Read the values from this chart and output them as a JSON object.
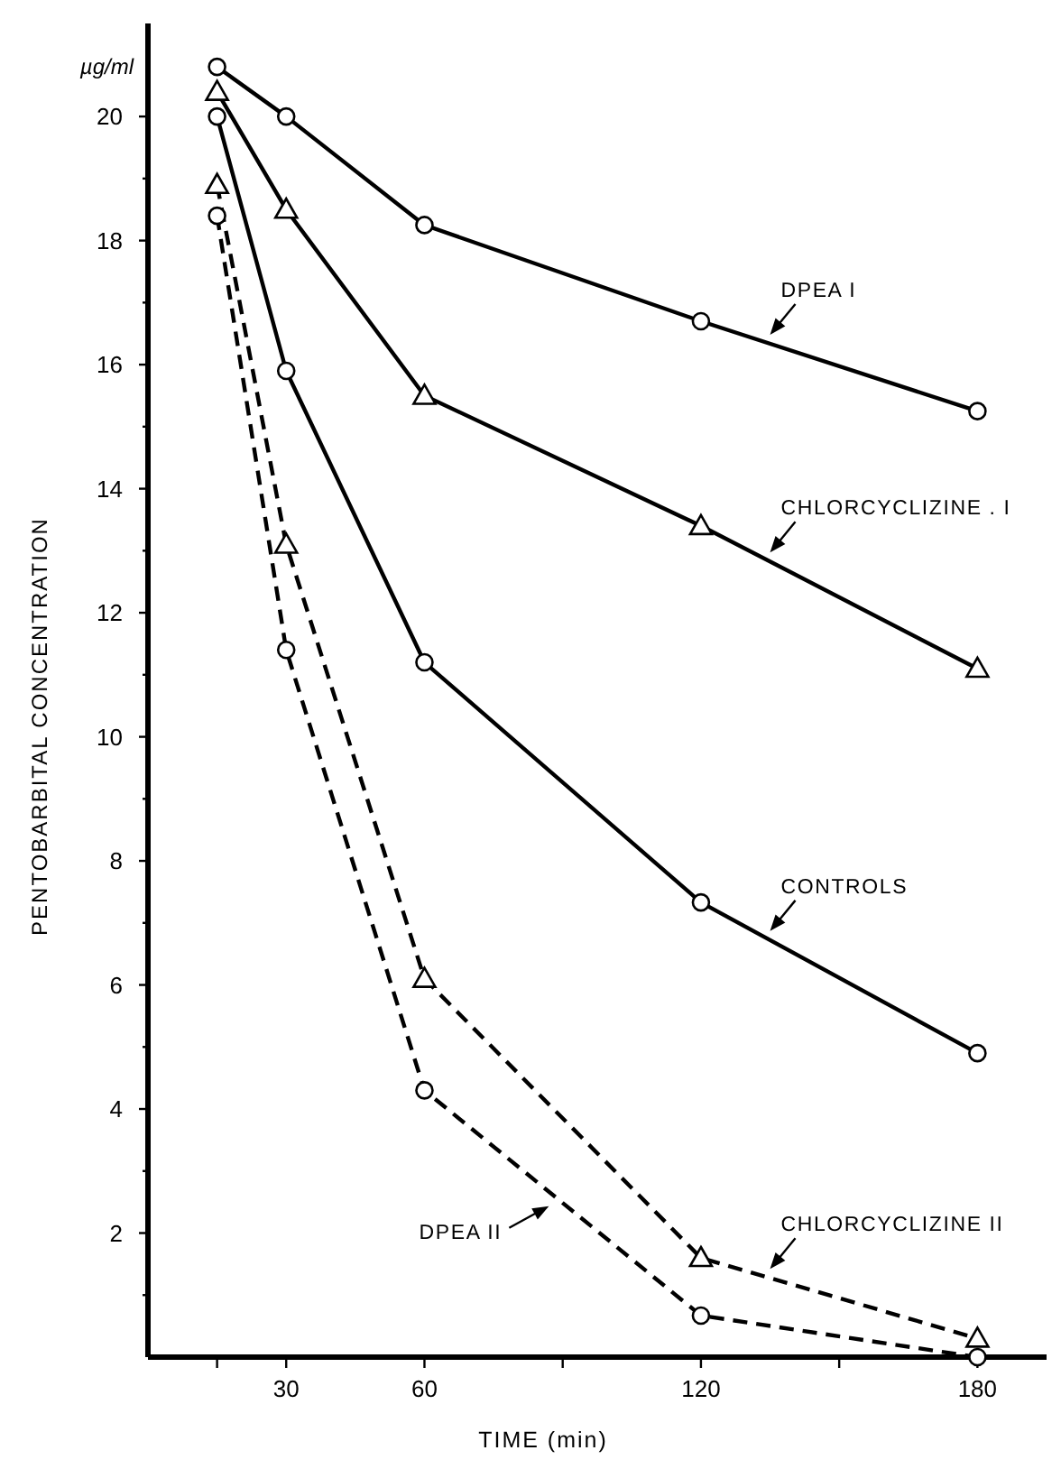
{
  "chart_data": {
    "type": "line",
    "xlabel": "TIME (min)",
    "ylabel": "PENTOBARBITAL  CONCENTRATION",
    "annotations": [
      "µg/ml"
    ],
    "x": [
      15,
      30,
      60,
      120,
      180
    ],
    "xlim": [
      0,
      195
    ],
    "xticks": [
      {
        "value": 15,
        "label": null
      },
      30,
      60,
      {
        "value": 90,
        "label": null
      },
      120,
      {
        "value": 150,
        "label": null
      },
      180
    ],
    "ylim": [
      0,
      21.5
    ],
    "yticks": [
      {
        "value": 1,
        "label": null
      },
      2,
      {
        "value": 3,
        "label": null
      },
      4,
      {
        "value": 5,
        "label": null
      },
      6,
      {
        "value": 7,
        "label": null
      },
      8,
      {
        "value": 9,
        "label": null
      },
      10,
      {
        "value": 11,
        "label": null
      },
      12,
      {
        "value": 13,
        "label": null
      },
      14,
      {
        "value": 15,
        "label": null
      },
      16,
      {
        "value": 17,
        "label": null
      },
      18,
      {
        "value": 19,
        "label": null
      },
      20
    ],
    "grid": false,
    "legend": false,
    "series": [
      {
        "name": "DPEA I",
        "color": "#000000",
        "marker": "circle",
        "line_style": "solid",
        "values": [
          20.8,
          20.0,
          18.25,
          16.7,
          15.25
        ]
      },
      {
        "name": "CHLORCYCLIZINE . I",
        "color": "#000000",
        "marker": "triangle",
        "line_style": "solid",
        "values": [
          20.4,
          18.5,
          15.5,
          13.4,
          11.1
        ]
      },
      {
        "name": "CONTROLS",
        "color": "#000000",
        "marker": "circle",
        "line_style": "solid",
        "values": [
          20.0,
          15.9,
          11.2,
          7.33,
          4.9
        ]
      },
      {
        "name": "CHLORCYCLIZINE II",
        "color": "#000000",
        "marker": "triangle",
        "line_style": "dashed",
        "values": [
          18.9,
          13.1,
          6.1,
          1.6,
          0.3
        ]
      },
      {
        "name": "DPEA II",
        "color": "#000000",
        "marker": "circle",
        "line_style": "dashed",
        "values": [
          18.4,
          11.4,
          4.3,
          0.67,
          0
        ]
      }
    ]
  }
}
